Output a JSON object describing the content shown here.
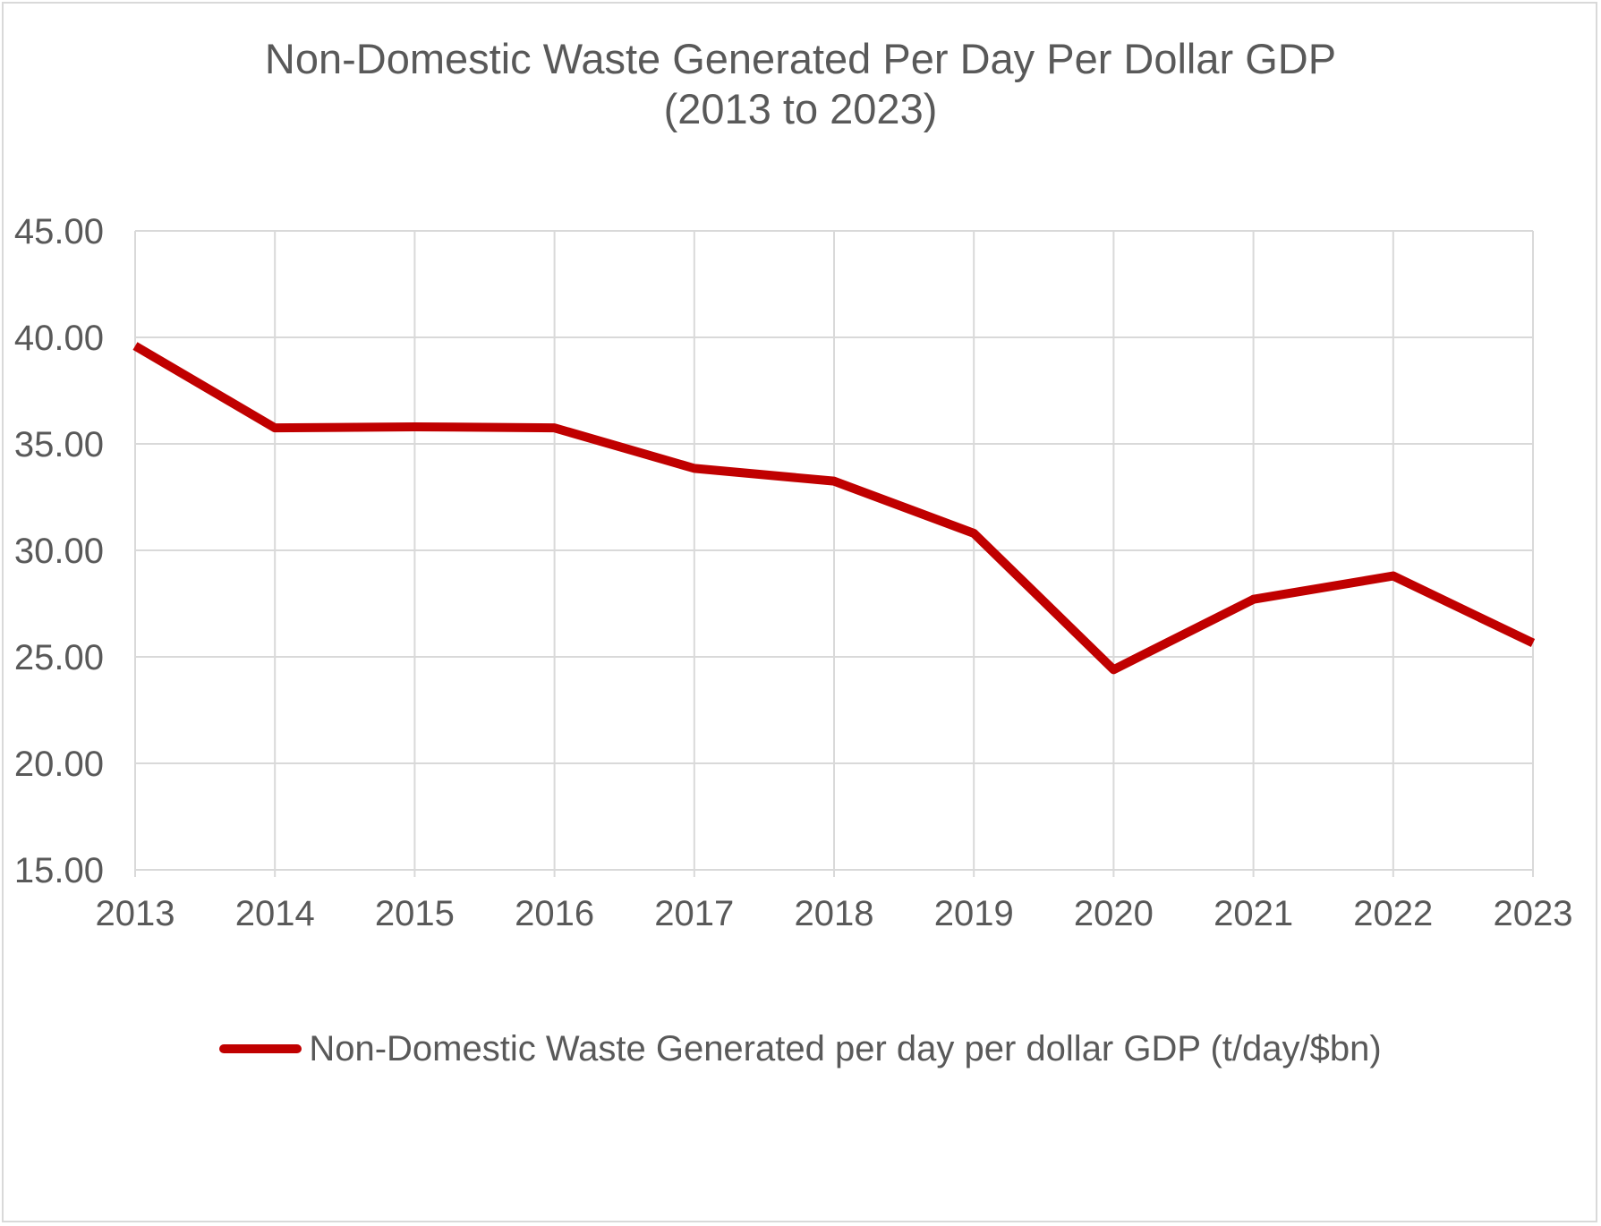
{
  "chart_data": {
    "type": "line",
    "title_line1": "Non-Domestic Waste Generated Per Day Per Dollar GDP",
    "title_line2": "(2013 to 2023)",
    "xlabel": "",
    "ylabel": "",
    "categories": [
      "2013",
      "2014",
      "2015",
      "2016",
      "2017",
      "2018",
      "2019",
      "2020",
      "2021",
      "2022",
      "2023"
    ],
    "series": [
      {
        "name": "Non-Domestic Waste Generated per day per dollar GDP (t/day/$bn)",
        "values": [
          39.6,
          35.75,
          35.8,
          35.75,
          33.85,
          33.25,
          30.8,
          24.4,
          27.7,
          28.8,
          25.65
        ],
        "color": "#c00000"
      }
    ],
    "ylim": [
      15,
      45
    ],
    "ytick_values": [
      15,
      20,
      25,
      30,
      35,
      40,
      45
    ],
    "ytick_labels": [
      "15.00",
      "20.00",
      "25.00",
      "30.00",
      "35.00",
      "40.00",
      "45.00"
    ],
    "grid": true,
    "legend_position": "bottom"
  },
  "colors": {
    "series_line": "#c00000",
    "grid": "#d9d9d9",
    "text": "#595959",
    "border": "#d9d9d9"
  }
}
